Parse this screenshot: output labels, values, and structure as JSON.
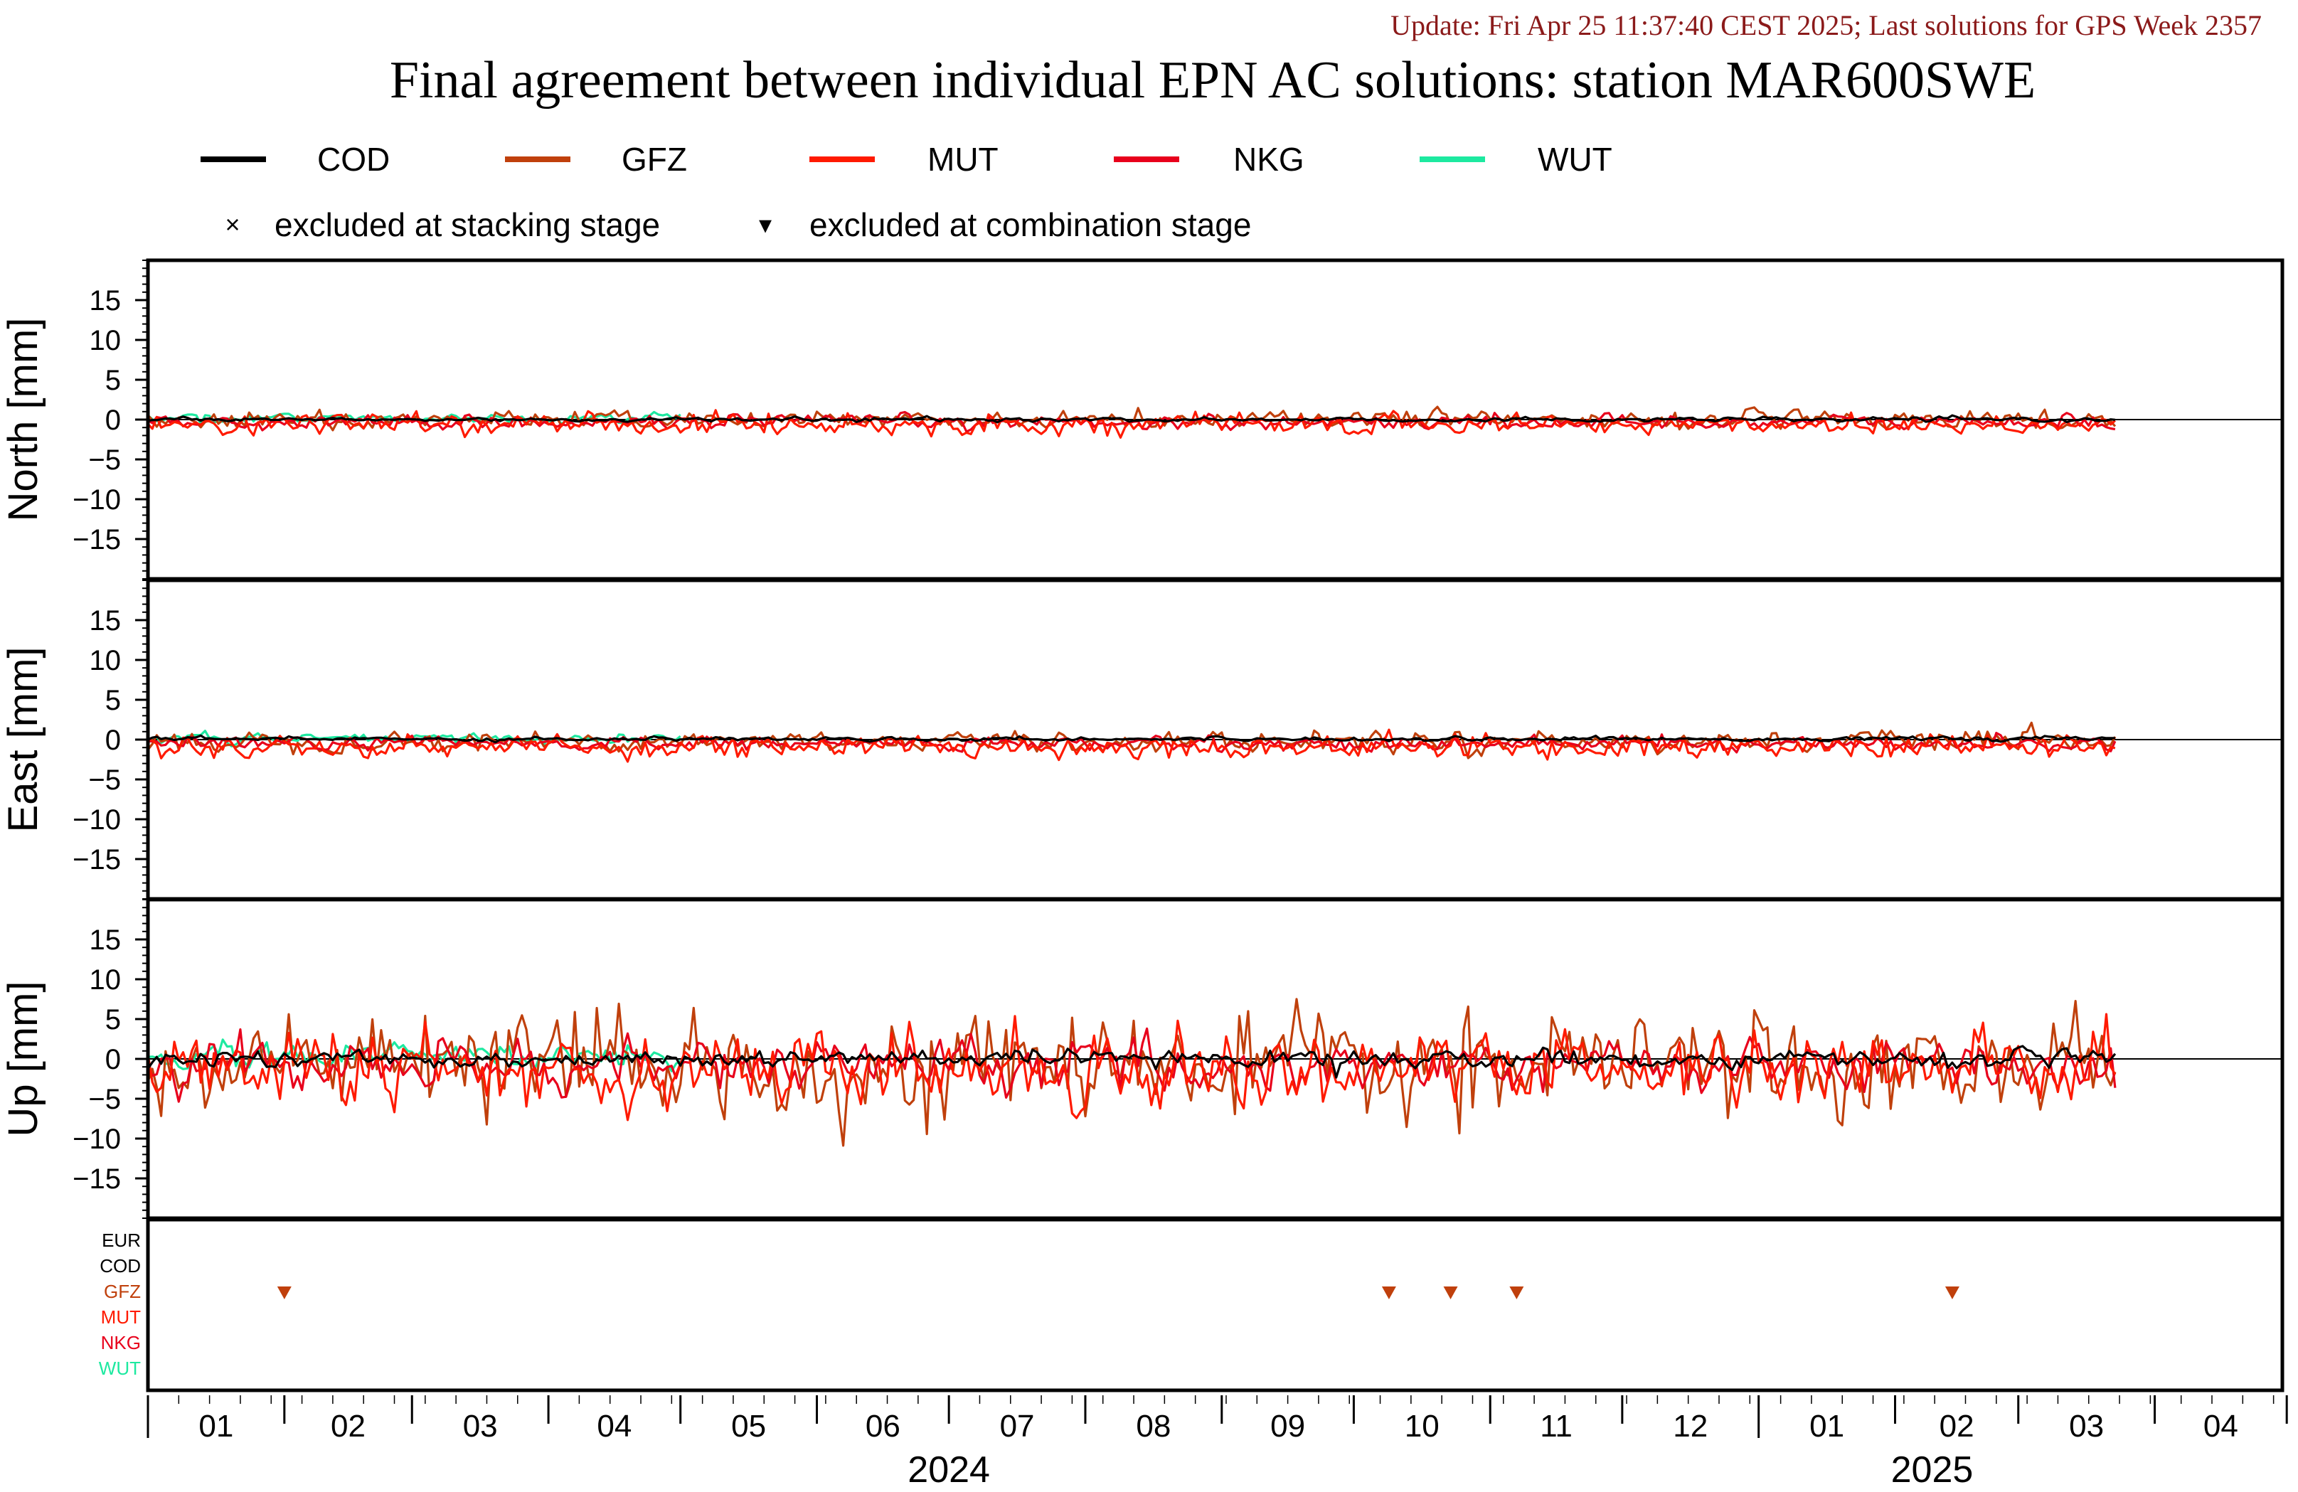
{
  "update_text": "Update: Fri Apr 25 11:37:40 CEST 2025; Last solutions for GPS Week 2357",
  "title": "Final agreement between individual EPN AC solutions: station MAR600SWE",
  "legend": {
    "entries": [
      {
        "name": "COD",
        "color": "#000000"
      },
      {
        "name": "GFZ",
        "color": "#c0400c"
      },
      {
        "name": "MUT",
        "color": "#ff1a00"
      },
      {
        "name": "NKG",
        "color": "#e8001c"
      },
      {
        "name": "WUT",
        "color": "#1de9a0"
      }
    ],
    "markers": [
      {
        "symbol": "×",
        "label": "excluded at stacking stage"
      },
      {
        "symbol": "▾",
        "label": "excluded at combination stage"
      }
    ]
  },
  "colors": {
    "update_text": "#8b1a1a",
    "COD": "#000000",
    "GFZ": "#c0400c",
    "MUT": "#ff1a00",
    "NKG": "#e8001c",
    "WUT": "#1de9a0"
  },
  "x_axis": {
    "month_labels": [
      "01",
      "02",
      "03",
      "04",
      "05",
      "06",
      "07",
      "08",
      "09",
      "10",
      "11",
      "12",
      "01",
      "02",
      "03",
      "04"
    ],
    "year_labels": [
      {
        "label": "2024",
        "month_index": 6
      },
      {
        "label": "2025",
        "month_index": 13.3
      }
    ]
  },
  "exclusion_panel": {
    "rows": [
      {
        "label": "EUR",
        "color": "#000000"
      },
      {
        "label": "COD",
        "color": "#000000"
      },
      {
        "label": "GFZ",
        "color": "#c0400c"
      },
      {
        "label": "MUT",
        "color": "#ff1a00"
      },
      {
        "label": "NKG",
        "color": "#e8001c"
      },
      {
        "label": "WUT",
        "color": "#1de9a0"
      }
    ],
    "combination_exclusions": [
      {
        "ac": "GFZ",
        "date": "2024-02-01"
      },
      {
        "ac": "GFZ",
        "date": "2024-10-09"
      },
      {
        "ac": "GFZ",
        "date": "2024-10-23"
      },
      {
        "ac": "GFZ",
        "date": "2024-11-07"
      },
      {
        "ac": "GFZ",
        "date": "2025-02-14"
      }
    ]
  },
  "chart_data": {
    "type": "line",
    "x_start": "2024-01-01",
    "x_end": "2025-04-30",
    "data_start": "2024-01-01",
    "data_end": "2025-03-23",
    "ylim": [
      -20,
      20
    ],
    "yticks": [
      -15,
      -10,
      -5,
      0,
      5,
      10,
      15
    ],
    "panels": [
      {
        "ylabel": "North [mm]",
        "series": {
          "COD": {
            "start": "2024-01-01",
            "end": "2025-03-23",
            "amp": 0.15,
            "smooth": 0.5,
            "offset": 0
          },
          "GFZ": {
            "start": "2024-01-01",
            "end": "2025-03-23",
            "amp": 0.6,
            "smooth": 0.3,
            "offset": 0.0
          },
          "MUT": {
            "start": "2024-01-01",
            "end": "2025-03-23",
            "amp": 0.7,
            "smooth": 0.3,
            "offset": -0.6
          },
          "NKG": {
            "start": "2024-01-01",
            "end": "2025-03-23",
            "amp": 0.5,
            "smooth": 0.4,
            "offset": -0.3
          },
          "WUT": {
            "start": "2024-01-01",
            "end": "2024-05-01",
            "amp": 0.35,
            "smooth": 0.4,
            "offset": 0.2
          }
        }
      },
      {
        "ylabel": "East [mm]",
        "series": {
          "COD": {
            "start": "2024-01-01",
            "end": "2025-03-23",
            "amp": 0.15,
            "smooth": 0.5,
            "offset": 0.1
          },
          "GFZ": {
            "start": "2024-01-01",
            "end": "2025-03-23",
            "amp": 0.7,
            "smooth": 0.3,
            "offset": -0.2
          },
          "MUT": {
            "start": "2024-01-01",
            "end": "2025-03-23",
            "amp": 0.8,
            "smooth": 0.3,
            "offset": -0.9
          },
          "NKG": {
            "start": "2024-01-01",
            "end": "2025-03-23",
            "amp": 0.5,
            "smooth": 0.4,
            "offset": -0.5
          },
          "WUT": {
            "start": "2024-01-01",
            "end": "2024-05-01",
            "amp": 0.35,
            "smooth": 0.4,
            "offset": 0.1
          }
        }
      },
      {
        "ylabel": "Up [mm]",
        "series": {
          "COD": {
            "start": "2024-01-01",
            "end": "2025-03-23",
            "amp": 0.6,
            "smooth": 0.4,
            "offset": 0
          },
          "GFZ": {
            "start": "2024-01-01",
            "end": "2025-03-23",
            "amp": 3.4,
            "smooth": 0.3,
            "offset": -1.0
          },
          "MUT": {
            "start": "2024-01-01",
            "end": "2025-03-23",
            "amp": 2.6,
            "smooth": 0.3,
            "offset": -1.2
          },
          "NKG": {
            "start": "2024-01-01",
            "end": "2025-03-23",
            "amp": 1.8,
            "smooth": 0.4,
            "offset": -0.8
          },
          "WUT": {
            "start": "2024-01-01",
            "end": "2024-05-01",
            "amp": 1.0,
            "smooth": 0.4,
            "offset": 0.3
          }
        }
      }
    ]
  }
}
